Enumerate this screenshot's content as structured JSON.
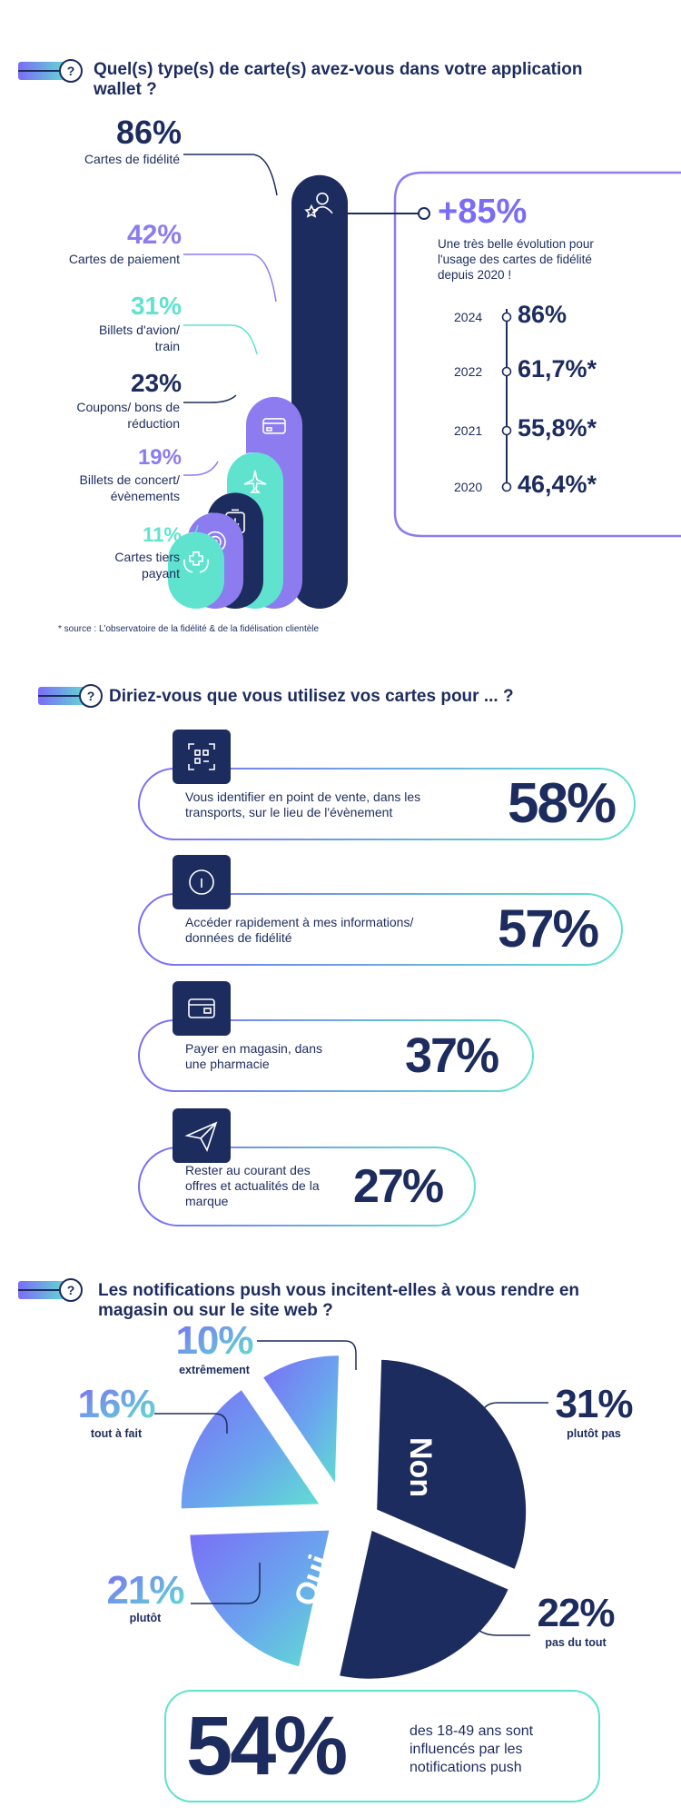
{
  "q1": {
    "title_line1": "Quel(s) type(s) de carte(s) avez-vous dans votre application",
    "title_line2": "wallet ?",
    "source": "* source : L'observatoire de la fidélité & de la fidélisation clientèle",
    "highlight": {
      "value": "+85%",
      "text_line1": "Une très belle évolution pour",
      "text_line2": "l'usage des cartes de fidélité",
      "text_line3": "depuis 2020 !"
    },
    "timeline": [
      {
        "year": "2024",
        "value": "86%"
      },
      {
        "year": "2022",
        "value": "61,7%*"
      },
      {
        "year": "2021",
        "value": "55,8%*"
      },
      {
        "year": "2020",
        "value": "46,4%*"
      }
    ]
  },
  "q2": {
    "title": "Diriez-vous que vous utilisez vos cartes pour ... ?",
    "items": [
      {
        "line1": "Vous identifier en point de vente, dans les",
        "line2": "transports, sur le lieu de l'évènement",
        "line3": "",
        "value": "58%",
        "icon": "qr-scan-icon"
      },
      {
        "line1": "Accéder rapidement à mes informations/",
        "line2": "données de fidélité",
        "line3": "",
        "value": "57%",
        "icon": "info-icon"
      },
      {
        "line1": "Payer en magasin, dans",
        "line2": "une pharmacie",
        "line3": "",
        "value": "37%",
        "icon": "card-icon"
      },
      {
        "line1": "Rester au courant des",
        "line2": "offres et actualités de la",
        "line3": "marque",
        "value": "27%",
        "icon": "send-icon"
      }
    ]
  },
  "q3": {
    "title_line1": "Les notifications push vous incitent-elles à vous rendre en",
    "title_line2": "magasin ou sur le site web ?",
    "oui_label": "Oui",
    "non_label": "Non",
    "summary": {
      "value": "54%",
      "line1": "des 18-49 ans sont",
      "line2": "influencés par les",
      "line3": "notifications push"
    }
  },
  "colors": {
    "navy": "#1d2c5e",
    "purple": "#8c7cf0",
    "mint": "#5fe3cf",
    "violet": "#7b6cf6"
  },
  "chart_data": [
    {
      "type": "bar",
      "title": "Quel(s) type(s) de carte(s) avez-vous dans votre application wallet ?",
      "categories": [
        "Cartes de fidélité",
        "Cartes de paiement",
        "Billets d'avion/ train",
        "Coupons/ bons de réduction",
        "Billets de concert/ évènements",
        "Cartes tiers payant"
      ],
      "category_lines": [
        [
          "Cartes de fidélité"
        ],
        [
          "Cartes de paiement"
        ],
        [
          "Billets d'avion/",
          "train"
        ],
        [
          "Coupons/ bons de",
          "réduction"
        ],
        [
          "Billets de concert/",
          "évènements"
        ],
        [
          "Cartes tiers",
          "payant"
        ]
      ],
      "values": [
        86,
        42,
        31,
        23,
        19,
        11
      ],
      "labels": [
        "86%",
        "42%",
        "31%",
        "23%",
        "19%",
        "11%"
      ],
      "bar_colors": [
        "#1d2c5e",
        "#8c7cf0",
        "#5fe3cf",
        "#1d2c5e",
        "#8c7cf0",
        "#5fe3cf"
      ],
      "icons": [
        "star-user-icon",
        "payment-card-icon",
        "plane-icon",
        "ticket-download-icon",
        "disc-icon",
        "care-hands-icon"
      ],
      "ylim": [
        0,
        100
      ]
    },
    {
      "type": "line",
      "title": "+85%",
      "x": [
        "2020",
        "2021",
        "2022",
        "2024"
      ],
      "values": [
        46.4,
        55.8,
        61.7,
        86
      ]
    },
    {
      "type": "bar",
      "title": "Diriez-vous que vous utilisez vos cartes pour ... ?",
      "categories": [
        "Vous identifier en point de vente, dans les transports, sur le lieu de l'évènement",
        "Accéder rapidement à mes informations/ données de fidélité",
        "Payer en magasin, dans une pharmacie",
        "Rester au courant des offres et actualités de la marque"
      ],
      "values": [
        58,
        57,
        37,
        27
      ]
    },
    {
      "type": "pie",
      "title": "Les notifications push vous incitent-elles à vous rendre en magasin ou sur le site web ?",
      "slices": [
        {
          "label": "extrêmement",
          "value": 10,
          "text": "10%",
          "group": "Oui",
          "color": "#5fe3cf"
        },
        {
          "label": "tout à fait",
          "value": 16,
          "text": "16%",
          "group": "Oui",
          "color": "#7b6cf6"
        },
        {
          "label": "plutôt",
          "value": 21,
          "text": "21%",
          "group": "Oui",
          "color": "#6aa6ee"
        },
        {
          "label": "plutôt pas",
          "value": 31,
          "text": "31%",
          "group": "Non",
          "color": "#1d2c5e"
        },
        {
          "label": "pas du tout",
          "value": 22,
          "text": "22%",
          "group": "Non",
          "color": "#1d2c5e"
        }
      ]
    }
  ]
}
